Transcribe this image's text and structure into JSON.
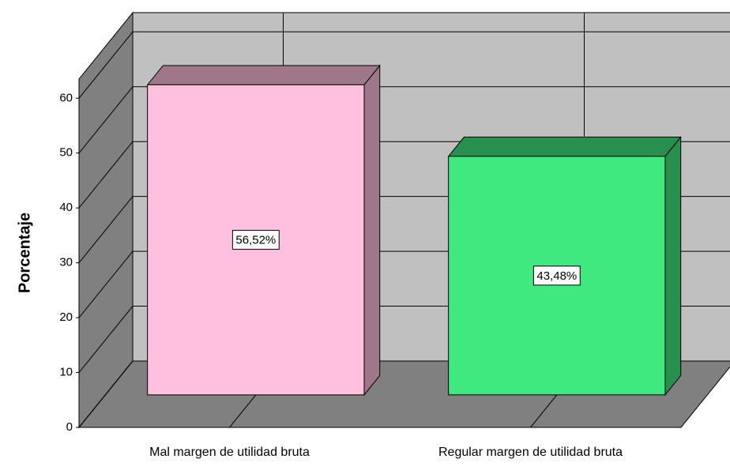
{
  "chart_data": {
    "type": "bar3d",
    "y_label": "Porcentaje",
    "categories": [
      "Mal margen de utilidad bruta",
      "Regular margen de utilidad bruta"
    ],
    "values": [
      56.52,
      43.48
    ],
    "value_labels": [
      "56,52%",
      "43,48%"
    ],
    "colors": [
      "#ffc0e0",
      "#40e880"
    ],
    "ylim": [
      0,
      63.5
    ],
    "yticks": [
      0,
      10,
      20,
      30,
      40,
      50,
      60
    ],
    "grid": true
  }
}
